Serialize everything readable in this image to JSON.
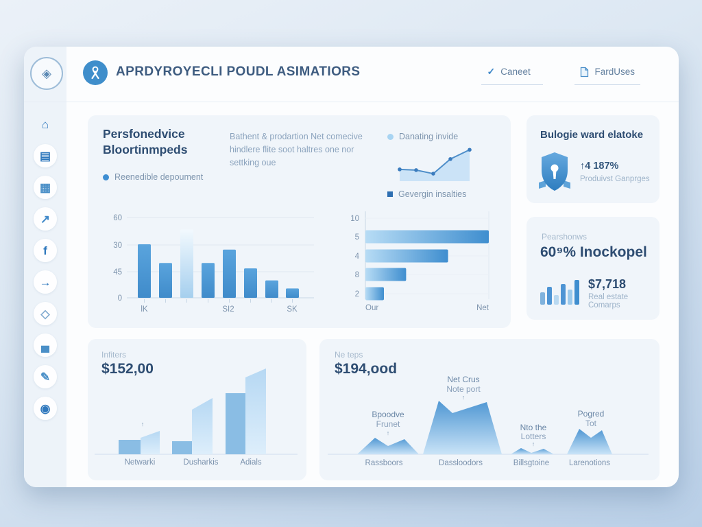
{
  "colors": {
    "accent": "#3f8ecb",
    "heading": "#2e4d72",
    "muted": "#8ba3bd",
    "panel_bg": "#f0f5fa",
    "bar_dark": "#4693d1",
    "bar_light": "#aed6f1",
    "axis": "#c7d6e5",
    "grid": "#dfe7f0"
  },
  "header": {
    "title": "APRDYROYECLI POUDL ASIMATIORS",
    "actions": [
      {
        "label": "Caneet",
        "icon": "check-icon"
      },
      {
        "label": "FardUses",
        "icon": "document-icon"
      }
    ]
  },
  "sidebar": {
    "items": [
      {
        "name": "home-icon",
        "glyph": "⌂",
        "circled": false,
        "color": "#2f78bd"
      },
      {
        "name": "briefcase-icon",
        "glyph": "▤",
        "circled": true,
        "color": "#2f78bd"
      },
      {
        "name": "card-list-icon",
        "glyph": "▦",
        "circled": true,
        "color": "#4a8fc7"
      },
      {
        "name": "trend-icon",
        "glyph": "↗",
        "circled": true,
        "color": "#3f88c9"
      },
      {
        "name": "facebook-icon",
        "glyph": "f",
        "circled": true,
        "color": "#2f78bd"
      },
      {
        "name": "arrow-right-icon",
        "glyph": "→",
        "circled": true,
        "color": "#2f78bd"
      },
      {
        "name": "cube-icon",
        "glyph": "◇",
        "circled": true,
        "color": "#7fa9cf"
      },
      {
        "name": "chart-image-icon",
        "glyph": "▄",
        "circled": true,
        "color": "#4a8fc7"
      },
      {
        "name": "pen-icon",
        "glyph": "✎",
        "circled": true,
        "color": "#4a8fc7"
      },
      {
        "name": "camera-icon",
        "glyph": "◉",
        "circled": true,
        "color": "#2f78bd"
      }
    ]
  },
  "overview_panel": {
    "title_line1": "Persfonedvice",
    "title_line2": "Bloortinmpeds",
    "legend": "Reenedible depoument",
    "description": "Bathent & prodartion Net comecive hindlere flite soot haltres one nor settking oue",
    "spark": {
      "legend_top": "Danating invide",
      "legend_bottom": "Gevergin insalties",
      "chart": {
        "type": "area",
        "values": [
          33,
          31,
          21,
          62,
          88
        ]
      }
    },
    "bar_chart": {
      "type": "bar",
      "y_ticks": [
        "60",
        "30",
        "45",
        "0"
      ],
      "x_ticks": [
        "lK",
        "SI2",
        "SK"
      ],
      "values": [
        40,
        26,
        51,
        26,
        36,
        22,
        13,
        7
      ],
      "highlight_index": 2,
      "ymax": 60
    },
    "hbar_chart": {
      "type": "bar-horizontal",
      "rows": [
        {
          "label": "10",
          "value": 0
        },
        {
          "label": "5",
          "value": 100
        },
        {
          "label": "4",
          "value": 67
        },
        {
          "label": "8",
          "value": 33
        },
        {
          "label": "2",
          "value": 15
        }
      ],
      "x_left": "Our",
      "x_right": "Net"
    }
  },
  "badge_panel": {
    "title": "Bulogie ward elatoke",
    "icon": "shield-icon",
    "stat": "↑4 187%",
    "sub": "Produivst Ganprges"
  },
  "rate_panel": {
    "label": "Pearshonws",
    "heading": "60⁹% Inockopel",
    "icon": "mini-bars-icon",
    "mini_bars": [
      18,
      26,
      14,
      30,
      22,
      36
    ],
    "stat": "$7,718",
    "sub": "Real estate Comarps"
  },
  "growth_panel": {
    "label": "Infiters",
    "heading": "$152,00",
    "chart": {
      "type": "bar",
      "marker": "↑",
      "groups": [
        {
          "label": "Netwarki",
          "bar": 21,
          "ramp": [
            24,
            34
          ]
        },
        {
          "label": "Dusharkis",
          "bar": 19,
          "ramp": [
            65,
            82
          ]
        },
        {
          "label": "Adials",
          "bar": 89,
          "ramp": [
            112,
            125
          ]
        }
      ]
    }
  },
  "peaks_panel": {
    "label": "Ne teps",
    "heading": "$194,ood",
    "chart": {
      "type": "area",
      "groups": [
        {
          "label": "Rassboors",
          "note": [
            "Bpoodve",
            "Frunet"
          ],
          "arrow": "↑",
          "peaks": [
            24,
            22
          ],
          "valley": 12
        },
        {
          "label": "Dassloodors",
          "note": [
            "Net Crus",
            "Note port"
          ],
          "arrow": "↑",
          "peaks": [
            78,
            76
          ],
          "valley": 60
        },
        {
          "label": "Billsgtoine",
          "note": [
            "Nto the",
            "Lotters"
          ],
          "arrow": "↑",
          "peaks": [
            9,
            8
          ],
          "valley": 2
        },
        {
          "label": "Larenotions",
          "note": [
            "Pogred",
            "Tot"
          ],
          "arrow": "",
          "peaks": [
            37,
            35
          ],
          "valley": 24
        }
      ]
    }
  }
}
